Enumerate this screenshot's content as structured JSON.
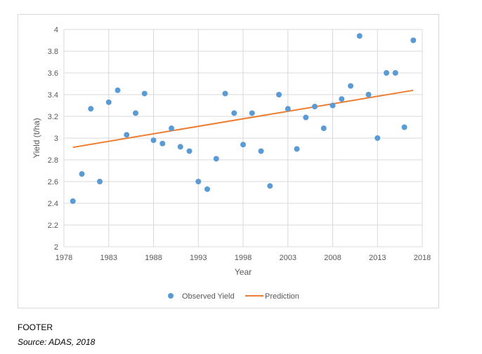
{
  "chart_data": {
    "type": "scatter",
    "ylabel": "Yield (t/ha)",
    "xlabel": "Year",
    "xlim": [
      1978,
      2018
    ],
    "ylim": [
      2,
      4
    ],
    "xticks": [
      1978,
      1983,
      1988,
      1993,
      1998,
      2003,
      2008,
      2013,
      2018
    ],
    "yticks": [
      "2",
      "2.2",
      "2.4",
      "2.6",
      "2.8",
      "3",
      "3.2",
      "3.4",
      "3.6",
      "3.8",
      "4"
    ],
    "grid": true,
    "legend_position": "bottom",
    "series": [
      {
        "name": "Observed Yield",
        "kind": "scatter",
        "color": "#5b9bd5",
        "x": [
          1979,
          1980,
          1981,
          1982,
          1983,
          1984,
          1985,
          1986,
          1987,
          1988,
          1989,
          1990,
          1991,
          1992,
          1993,
          1994,
          1995,
          1996,
          1997,
          1998,
          1999,
          2000,
          2001,
          2002,
          2003,
          2004,
          2005,
          2006,
          2007,
          2008,
          2009,
          2010,
          2011,
          2012,
          2013,
          2014,
          2015,
          2016,
          2017
        ],
        "y": [
          2.42,
          2.67,
          3.27,
          2.6,
          3.33,
          3.44,
          3.03,
          3.23,
          3.41,
          2.98,
          2.95,
          3.09,
          2.92,
          2.88,
          2.6,
          2.53,
          2.81,
          3.41,
          3.23,
          2.94,
          3.23,
          2.88,
          2.56,
          3.4,
          3.27,
          2.9,
          3.19,
          3.29,
          3.09,
          3.3,
          3.36,
          3.48,
          3.94,
          3.4,
          3.0,
          3.6,
          3.6,
          3.1,
          3.9
        ]
      },
      {
        "name": "Prediction",
        "kind": "line",
        "color": "#ed7d31",
        "x": [
          1979,
          2017
        ],
        "y": [
          2.915,
          3.44
        ]
      }
    ]
  },
  "footer": {
    "label": "FOOTER",
    "source": "Source: ADAS, 2018"
  }
}
